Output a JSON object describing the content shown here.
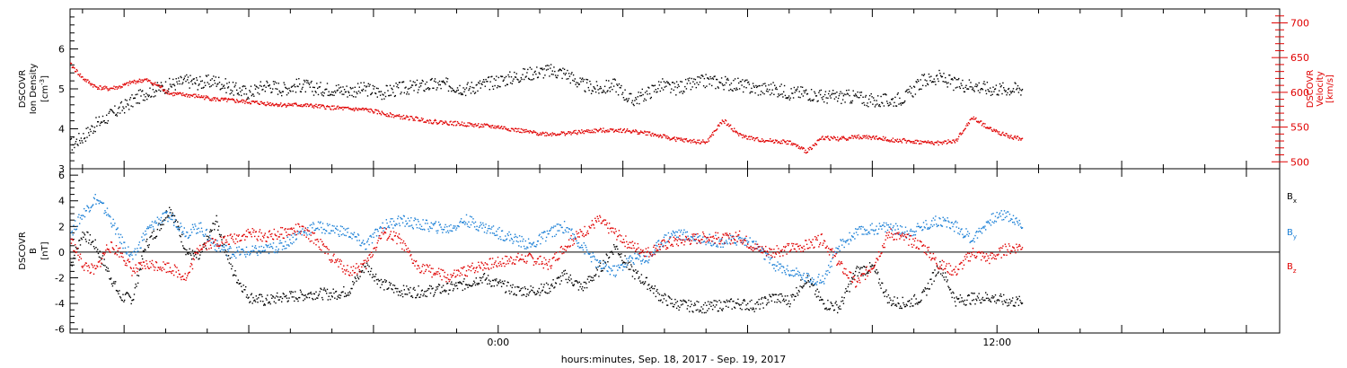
{
  "colors": {
    "density": "#000000",
    "velocity": "#e00000",
    "bx": "#000000",
    "by": "#1a7fd6",
    "bz": "#e00000"
  },
  "x_axis": {
    "label": "hours:minutes, Sep. 18, 2017 - Sep. 19, 2017",
    "tick_labels": [
      "0:00",
      "12:00"
    ],
    "range_hours": [
      -10.3,
      18.8
    ]
  },
  "chart_data": [
    {
      "type": "scatter",
      "panel": "top",
      "left_axis": {
        "label_lines": [
          "DSCOVR",
          "Ion Density"
        ],
        "unit": "[cm",
        "unit_exp": "-3",
        "unit_close": "]",
        "ylim": [
          3.0,
          7.0
        ],
        "tick_labels": [
          "3",
          "4",
          "5",
          "6"
        ],
        "ticks": [
          3,
          4,
          5,
          6
        ]
      },
      "right_axis": {
        "label_lines": [
          "DSCOVR",
          "Velocity",
          "[km/s]"
        ],
        "ylim": [
          490,
          720
        ],
        "tick_labels": [
          "500",
          "550",
          "600",
          "650",
          "700"
        ],
        "ticks": [
          500,
          550,
          600,
          650,
          700
        ]
      },
      "series": [
        {
          "axis": "left",
          "color": "density",
          "x": [
            -10.3,
            -10.0,
            -9.7,
            -9.4,
            -9.1,
            -8.8,
            -8.5,
            -8.2,
            -7.9,
            -7.5,
            -7.2,
            -6.8,
            -6.4,
            -6.0,
            -5.6,
            -5.2,
            -4.8,
            -4.4,
            -4.0,
            -3.6,
            -3.2,
            -2.8,
            -2.4,
            -2.0,
            -1.6,
            -1.2,
            -0.8,
            -0.4,
            0.0,
            0.4,
            0.8,
            1.2,
            1.6,
            2.0,
            2.4,
            2.8,
            3.2,
            3.6,
            3.9,
            4.2,
            4.6,
            5.0,
            5.4,
            5.8,
            6.2,
            6.6,
            7.0,
            7.4,
            7.8,
            8.2,
            8.6,
            9.0,
            9.4,
            9.8,
            10.2,
            10.6,
            11.0,
            11.4,
            11.8,
            12.2,
            12.6
          ],
          "y": [
            3.6,
            3.8,
            4.1,
            4.3,
            4.5,
            4.7,
            4.9,
            5.0,
            5.1,
            5.2,
            5.15,
            5.2,
            5.0,
            4.9,
            5.1,
            5.0,
            5.1,
            5.0,
            5.0,
            4.95,
            5.0,
            4.9,
            5.0,
            5.05,
            5.1,
            5.1,
            5.0,
            5.1,
            5.2,
            5.3,
            5.4,
            5.45,
            5.4,
            5.1,
            5.0,
            5.1,
            4.7,
            4.9,
            5.1,
            5.0,
            5.1,
            5.2,
            5.15,
            5.1,
            5.0,
            5.0,
            4.9,
            4.9,
            4.8,
            4.8,
            4.8,
            4.7,
            4.7,
            4.8,
            5.2,
            5.3,
            5.1,
            5.1,
            5.0,
            5.0,
            5.0
          ]
        },
        {
          "axis": "right",
          "color": "velocity",
          "x": [
            -10.3,
            -10.0,
            -9.7,
            -9.4,
            -9.1,
            -8.8,
            -8.5,
            -8.2,
            -7.9,
            -7.5,
            -7.2,
            -6.8,
            -6.4,
            -6.0,
            -5.6,
            -5.2,
            -4.8,
            -4.4,
            -4.0,
            -3.6,
            -3.2,
            -2.8,
            -2.4,
            -2.0,
            -1.6,
            -1.2,
            -0.8,
            -0.4,
            0.0,
            0.4,
            0.8,
            1.2,
            1.6,
            2.0,
            2.4,
            2.8,
            3.2,
            3.6,
            3.9,
            4.2,
            4.6,
            5.0,
            5.4,
            5.8,
            6.2,
            6.6,
            7.0,
            7.4,
            7.8,
            8.2,
            8.6,
            9.0,
            9.4,
            9.8,
            10.2,
            10.6,
            11.0,
            11.4,
            11.8,
            12.2,
            12.6
          ],
          "y": [
            640,
            620,
            608,
            605,
            608,
            615,
            618,
            610,
            598,
            596,
            594,
            590,
            588,
            586,
            584,
            582,
            582,
            580,
            578,
            576,
            575,
            570,
            565,
            562,
            558,
            556,
            554,
            552,
            550,
            546,
            542,
            540,
            541,
            543,
            545,
            546,
            544,
            541,
            537,
            533,
            530,
            528,
            560,
            538,
            532,
            530,
            528,
            515,
            535,
            533,
            536,
            535,
            532,
            530,
            528,
            527,
            530,
            564,
            548,
            538,
            532
          ]
        }
      ]
    },
    {
      "type": "scatter",
      "panel": "bottom",
      "left_axis": {
        "label_lines": [
          "DSCOVR",
          "B"
        ],
        "unit": "[nT]",
        "ylim": [
          -6.3,
          6.5
        ],
        "tick_labels": [
          "-6",
          "-4",
          "-2",
          "0",
          "2",
          "4",
          "6"
        ],
        "ticks": [
          -6,
          -4,
          -2,
          0,
          2,
          4,
          6
        ],
        "zero_line": true
      },
      "legend": [
        {
          "label": "B",
          "sub": "x",
          "color": "bx"
        },
        {
          "label": "B",
          "sub": "y",
          "color": "by"
        },
        {
          "label": "B",
          "sub": "z",
          "color": "bz"
        }
      ],
      "series": [
        {
          "name": "Bx",
          "color": "bx",
          "x": [
            -10.3,
            -10.0,
            -9.7,
            -9.4,
            -9.1,
            -8.8,
            -8.5,
            -8.2,
            -7.9,
            -7.5,
            -7.2,
            -6.8,
            -6.4,
            -6.0,
            -5.6,
            -5.2,
            -4.8,
            -4.4,
            -4.0,
            -3.6,
            -3.2,
            -2.8,
            -2.4,
            -2.0,
            -1.6,
            -1.2,
            -0.8,
            -0.4,
            0.0,
            0.4,
            0.8,
            1.2,
            1.6,
            2.0,
            2.4,
            2.8,
            3.2,
            3.6,
            3.9,
            4.2,
            4.6,
            5.0,
            5.4,
            5.8,
            6.2,
            6.6,
            7.0,
            7.4,
            7.8,
            8.2,
            8.6,
            9.0,
            9.4,
            9.8,
            10.2,
            10.6,
            11.0,
            11.4,
            11.8,
            12.2,
            12.6
          ],
          "y": [
            -1.0,
            1.5,
            0.5,
            -1.5,
            -3.5,
            -3.6,
            0.5,
            1.8,
            3.5,
            0.0,
            -0.5,
            2.5,
            -1.5,
            -3.5,
            -3.8,
            -3.5,
            -3.4,
            -3.2,
            -3.3,
            -3.0,
            -1.0,
            -2.5,
            -3.0,
            -3.1,
            -3.0,
            -2.8,
            -2.5,
            -2.0,
            -2.5,
            -3.0,
            -3.0,
            -2.8,
            -1.8,
            -2.8,
            -1.5,
            0.5,
            -1.5,
            -2.5,
            -3.5,
            -4.0,
            -4.2,
            -4.3,
            -4.1,
            -4.0,
            -4.2,
            -3.5,
            -3.8,
            -2.0,
            -4.0,
            -4.3,
            -1.5,
            -1.2,
            -3.8,
            -4.0,
            -3.5,
            -1.0,
            -3.8,
            -3.6,
            -3.5,
            -3.8,
            -3.9
          ]
        },
        {
          "name": "By",
          "color": "by",
          "x": [
            -10.3,
            -10.0,
            -9.7,
            -9.4,
            -9.1,
            -8.8,
            -8.5,
            -8.2,
            -7.9,
            -7.5,
            -7.2,
            -6.8,
            -6.4,
            -6.0,
            -5.6,
            -5.2,
            -4.8,
            -4.4,
            -4.0,
            -3.6,
            -3.2,
            -2.8,
            -2.4,
            -2.0,
            -1.6,
            -1.2,
            -0.8,
            -0.4,
            0.0,
            0.4,
            0.8,
            1.2,
            1.6,
            2.0,
            2.4,
            2.8,
            3.2,
            3.6,
            3.9,
            4.2,
            4.6,
            5.0,
            5.4,
            5.8,
            6.2,
            6.6,
            7.0,
            7.4,
            7.8,
            8.2,
            8.6,
            9.0,
            9.4,
            9.8,
            10.2,
            10.6,
            11.0,
            11.4,
            11.8,
            12.2,
            12.6
          ],
          "y": [
            1.5,
            3.0,
            4.2,
            3.0,
            1.0,
            -0.5,
            1.5,
            2.5,
            2.8,
            1.5,
            2.0,
            0.5,
            0.0,
            0.0,
            0.2,
            0.5,
            1.5,
            2.0,
            1.8,
            1.5,
            0.5,
            2.0,
            2.5,
            2.2,
            2.0,
            1.8,
            2.5,
            2.0,
            1.5,
            1.0,
            0.5,
            1.5,
            2.0,
            0.5,
            -1.0,
            -1.5,
            -0.5,
            -0.5,
            0.8,
            1.5,
            1.2,
            1.0,
            0.8,
            1.0,
            0.5,
            -1.0,
            -1.5,
            -2.0,
            -2.2,
            0.5,
            1.5,
            1.8,
            2.0,
            1.5,
            2.0,
            2.5,
            2.0,
            1.0,
            2.5,
            3.0,
            2.0
          ]
        },
        {
          "name": "Bz",
          "color": "bz",
          "x": [
            -10.3,
            -10.0,
            -9.7,
            -9.4,
            -9.1,
            -8.8,
            -8.5,
            -8.2,
            -7.9,
            -7.5,
            -7.2,
            -6.8,
            -6.4,
            -6.0,
            -5.6,
            -5.2,
            -4.8,
            -4.4,
            -4.0,
            -3.6,
            -3.2,
            -2.8,
            -2.4,
            -2.0,
            -1.6,
            -1.2,
            -0.8,
            -0.4,
            0.0,
            0.4,
            0.8,
            1.2,
            1.6,
            2.0,
            2.4,
            2.8,
            3.2,
            3.6,
            3.9,
            4.2,
            4.6,
            5.0,
            5.4,
            5.8,
            6.2,
            6.6,
            7.0,
            7.4,
            7.8,
            8.2,
            8.6,
            9.0,
            9.4,
            9.8,
            10.2,
            10.6,
            11.0,
            11.4,
            11.8,
            12.2,
            12.6
          ],
          "y": [
            1.0,
            -1.0,
            -1.5,
            0.5,
            0.0,
            -1.5,
            -1.0,
            -1.0,
            -1.2,
            -2.0,
            0.5,
            0.8,
            1.0,
            1.5,
            1.2,
            1.5,
            1.8,
            1.0,
            -0.5,
            -1.5,
            -1.0,
            1.5,
            1.0,
            -1.0,
            -1.5,
            -2.0,
            -1.5,
            -1.0,
            -0.8,
            -0.5,
            -0.5,
            -1.0,
            0.5,
            1.5,
            2.5,
            1.5,
            0.5,
            0.0,
            0.5,
            0.8,
            1.0,
            1.2,
            1.0,
            1.2,
            0.3,
            0.0,
            0.3,
            0.5,
            1.0,
            -1.0,
            -2.5,
            -1.0,
            1.5,
            1.0,
            0.5,
            -1.0,
            -1.5,
            0.0,
            -0.5,
            0.2,
            0.5
          ]
        }
      ]
    }
  ]
}
